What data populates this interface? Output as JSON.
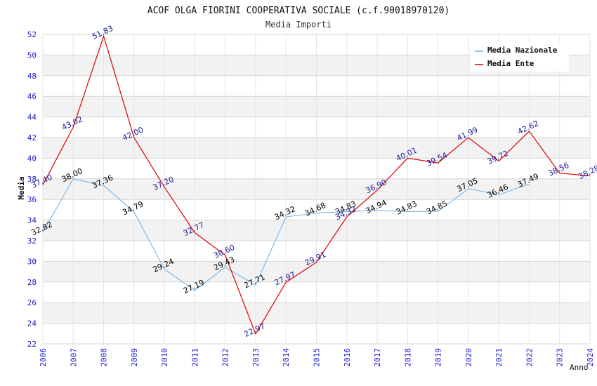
{
  "chart_data": {
    "type": "line",
    "title": "ACOF OLGA FIORINI COOPERATIVA SOCIALE (c.f.90018970120)",
    "subtitle": "Media Importi",
    "xlabel": "Anno",
    "ylabel": "Media",
    "ylim": [
      22,
      52
    ],
    "yticks": [
      22,
      24,
      26,
      28,
      30,
      32,
      34,
      36,
      38,
      40,
      42,
      44,
      46,
      48,
      50,
      52
    ],
    "x": [
      2006,
      2007,
      2008,
      2009,
      2010,
      2011,
      2012,
      2013,
      2014,
      2015,
      2016,
      2017,
      2018,
      2019,
      2020,
      2021,
      2022,
      2023,
      2024
    ],
    "x_labels": [
      "2006",
      "2007",
      "2008",
      "2009",
      "2010",
      "2011",
      "2012",
      "2013",
      "2014",
      "2015",
      "2016",
      "2017",
      "2018",
      "2019",
      "2020",
      "2021",
      "2022",
      "2023",
      "2024"
    ],
    "grid": true,
    "legend_position": "top-right",
    "series": [
      {
        "name": "Media Nazionale",
        "color": "#6aaee8",
        "label_color": "#000000",
        "values": [
          32.82,
          38.0,
          37.36,
          34.79,
          29.24,
          27.19,
          29.43,
          27.71,
          34.32,
          34.68,
          34.83,
          34.94,
          34.83,
          34.85,
          37.05,
          36.46,
          37.49,
          null,
          null
        ],
        "labels": [
          "32.82",
          "38.00",
          "37.36",
          "34.79",
          "29.24",
          "27.19",
          "29.43",
          "27.71",
          "34.32",
          "34.68",
          "34.83",
          "34.94",
          "34.83",
          "34.85",
          "37.05",
          "36.46",
          "37.49",
          null,
          null
        ]
      },
      {
        "name": "Media Ente",
        "color": "#dd0000",
        "label_color": "#1a1a99",
        "values": [
          37.4,
          43.02,
          51.83,
          42.0,
          37.2,
          32.77,
          30.6,
          22.97,
          27.97,
          29.91,
          34.32,
          36.9,
          40.01,
          39.54,
          41.99,
          39.72,
          42.62,
          38.56,
          38.28
        ],
        "labels": [
          "37.40",
          "43.02",
          "51.83",
          "42.00",
          "37.20",
          "32.77",
          "30.60",
          "22.97",
          "27.97",
          "29.91",
          "34.32",
          "36.90",
          "40.01",
          "39.54",
          "41.99",
          "39.72",
          "42.62",
          "38.56",
          "38.28"
        ]
      }
    ]
  }
}
